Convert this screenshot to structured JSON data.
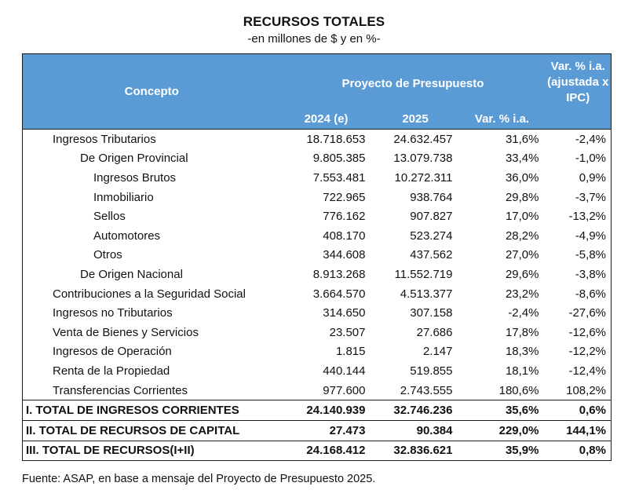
{
  "title": "RECURSOS TOTALES",
  "subtitle": "-en millones de $ y en %-",
  "header": {
    "concepto": "Concepto",
    "proyecto": "Proyecto de Presupuesto",
    "var_ipc": "Var. % i.a. (ajustada x IPC)",
    "col_2024": "2024 (e)",
    "col_2025": "2025",
    "col_var": "Var. % i.a."
  },
  "rows": [
    {
      "concepto": "Ingresos Tributarios",
      "v2024": "18.718.653",
      "v2025": "24.632.457",
      "var": "31,6%",
      "var_ipc": "-2,4%"
    },
    {
      "concepto": "De Origen Provincial",
      "v2024": "9.805.385",
      "v2025": "13.079.738",
      "var": "33,4%",
      "var_ipc": "-1,0%"
    },
    {
      "concepto": "Ingresos Brutos",
      "v2024": "7.553.481",
      "v2025": "10.272.311",
      "var": "36,0%",
      "var_ipc": "0,9%"
    },
    {
      "concepto": "Inmobiliario",
      "v2024": "722.965",
      "v2025": "938.764",
      "var": "29,8%",
      "var_ipc": "-3,7%"
    },
    {
      "concepto": "Sellos",
      "v2024": "776.162",
      "v2025": "907.827",
      "var": "17,0%",
      "var_ipc": "-13,2%"
    },
    {
      "concepto": "Automotores",
      "v2024": "408.170",
      "v2025": "523.274",
      "var": "28,2%",
      "var_ipc": "-4,9%"
    },
    {
      "concepto": "Otros",
      "v2024": "344.608",
      "v2025": "437.562",
      "var": "27,0%",
      "var_ipc": "-5,8%"
    },
    {
      "concepto": "De Origen Nacional",
      "v2024": "8.913.268",
      "v2025": "11.552.719",
      "var": "29,6%",
      "var_ipc": "-3,8%"
    },
    {
      "concepto": "Contribuciones a la Seguridad Social",
      "v2024": "3.664.570",
      "v2025": "4.513.377",
      "var": "23,2%",
      "var_ipc": "-8,6%"
    },
    {
      "concepto": "Ingresos no Tributarios",
      "v2024": "314.650",
      "v2025": "307.158",
      "var": "-2,4%",
      "var_ipc": "-27,6%"
    },
    {
      "concepto": "Venta de Bienes y Servicios",
      "v2024": "23.507",
      "v2025": "27.686",
      "var": "17,8%",
      "var_ipc": "-12,6%"
    },
    {
      "concepto": "Ingresos de Operación",
      "v2024": "1.815",
      "v2025": "2.147",
      "var": "18,3%",
      "var_ipc": "-12,2%"
    },
    {
      "concepto": "Renta de la Propiedad",
      "v2024": "440.144",
      "v2025": "519.855",
      "var": "18,1%",
      "var_ipc": "-12,4%"
    },
    {
      "concepto": "Transferencias Corrientes",
      "v2024": "977.600",
      "v2025": "2.743.555",
      "var": "180,6%",
      "var_ipc": "108,2%"
    }
  ],
  "totals": [
    {
      "concepto": "I. TOTAL DE INGRESOS CORRIENTES",
      "v2024": "24.140.939",
      "v2025": "32.746.236",
      "var": "35,6%",
      "var_ipc": "0,6%"
    },
    {
      "concepto": "II. TOTAL DE RECURSOS DE CAPITAL",
      "v2024": "27.473",
      "v2025": "90.384",
      "var": "229,0%",
      "var_ipc": "144,1%"
    },
    {
      "concepto": "III. TOTAL DE RECURSOS(I+II)",
      "v2024": "24.168.412",
      "v2025": "32.836.621",
      "var": "35,9%",
      "var_ipc": "0,8%"
    }
  ],
  "source": "Fuente: ASAP, en base a mensaje del Proyecto de Presupuesto 2025.",
  "colors": {
    "header_bg": "#5b9bd5",
    "header_text": "#ffffff",
    "border": "#1a1a1a"
  }
}
